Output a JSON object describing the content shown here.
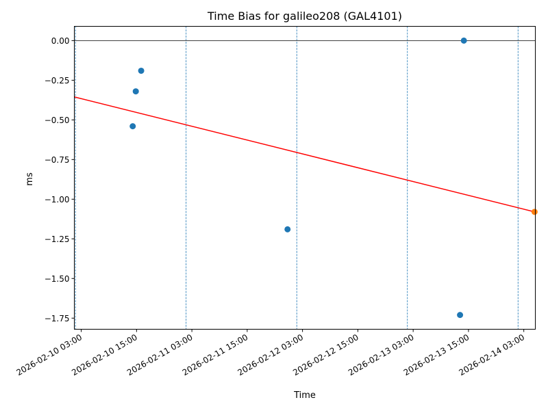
{
  "chart_data": {
    "type": "scatter",
    "title": "Time Bias for galileo208 (GAL4101)",
    "xlabel": "Time",
    "ylabel": "ms",
    "x_tick_labels": [
      "2026-02-10 03:00",
      "2026-02-10 15:00",
      "2026-02-11 03:00",
      "2026-02-11 15:00",
      "2026-02-12 03:00",
      "2026-02-12 15:00",
      "2026-02-13 03:00",
      "2026-02-13 15:00",
      "2026-02-14 03:00"
    ],
    "y_ticks": [
      0.0,
      -0.25,
      -0.5,
      -0.75,
      -1.0,
      -1.25,
      -1.5,
      -1.75
    ],
    "y_tick_labels": [
      "0.00",
      "−0.25",
      "−0.50",
      "−0.75",
      "−1.00",
      "−1.25",
      "−1.50",
      "−1.75"
    ],
    "xlim": [
      "2026-02-10 01:30",
      "2026-02-14 05:30"
    ],
    "ylim": [
      -1.82,
      0.09
    ],
    "grid": false,
    "reference_line_y": 0.0,
    "vertical_lines_x": [
      "2026-02-10 01:45",
      "2026-02-11 01:45",
      "2026-02-12 01:45",
      "2026-02-13 01:45",
      "2026-02-14 01:45"
    ],
    "points": [
      {
        "x": "2026-02-10 14:10",
        "y": -0.54
      },
      {
        "x": "2026-02-10 14:50",
        "y": -0.32
      },
      {
        "x": "2026-02-10 16:00",
        "y": -0.19
      },
      {
        "x": "2026-02-11 23:45",
        "y": -1.19
      },
      {
        "x": "2026-02-13 13:10",
        "y": -1.73
      },
      {
        "x": "2026-02-13 14:00",
        "y": 0.0
      }
    ],
    "highlight_points": [
      {
        "x": "2026-02-14 05:20",
        "y": -1.08
      }
    ],
    "trend_line": [
      {
        "x": "2026-02-10 01:30",
        "y": -0.355
      },
      {
        "x": "2026-02-14 05:20",
        "y": -1.08
      }
    ],
    "colors": {
      "points": "#1f77b4",
      "highlight": "#ff7f0e",
      "trend": "#ff0000",
      "vertical_lines": "#1f77b4",
      "reference": "#000000"
    }
  }
}
